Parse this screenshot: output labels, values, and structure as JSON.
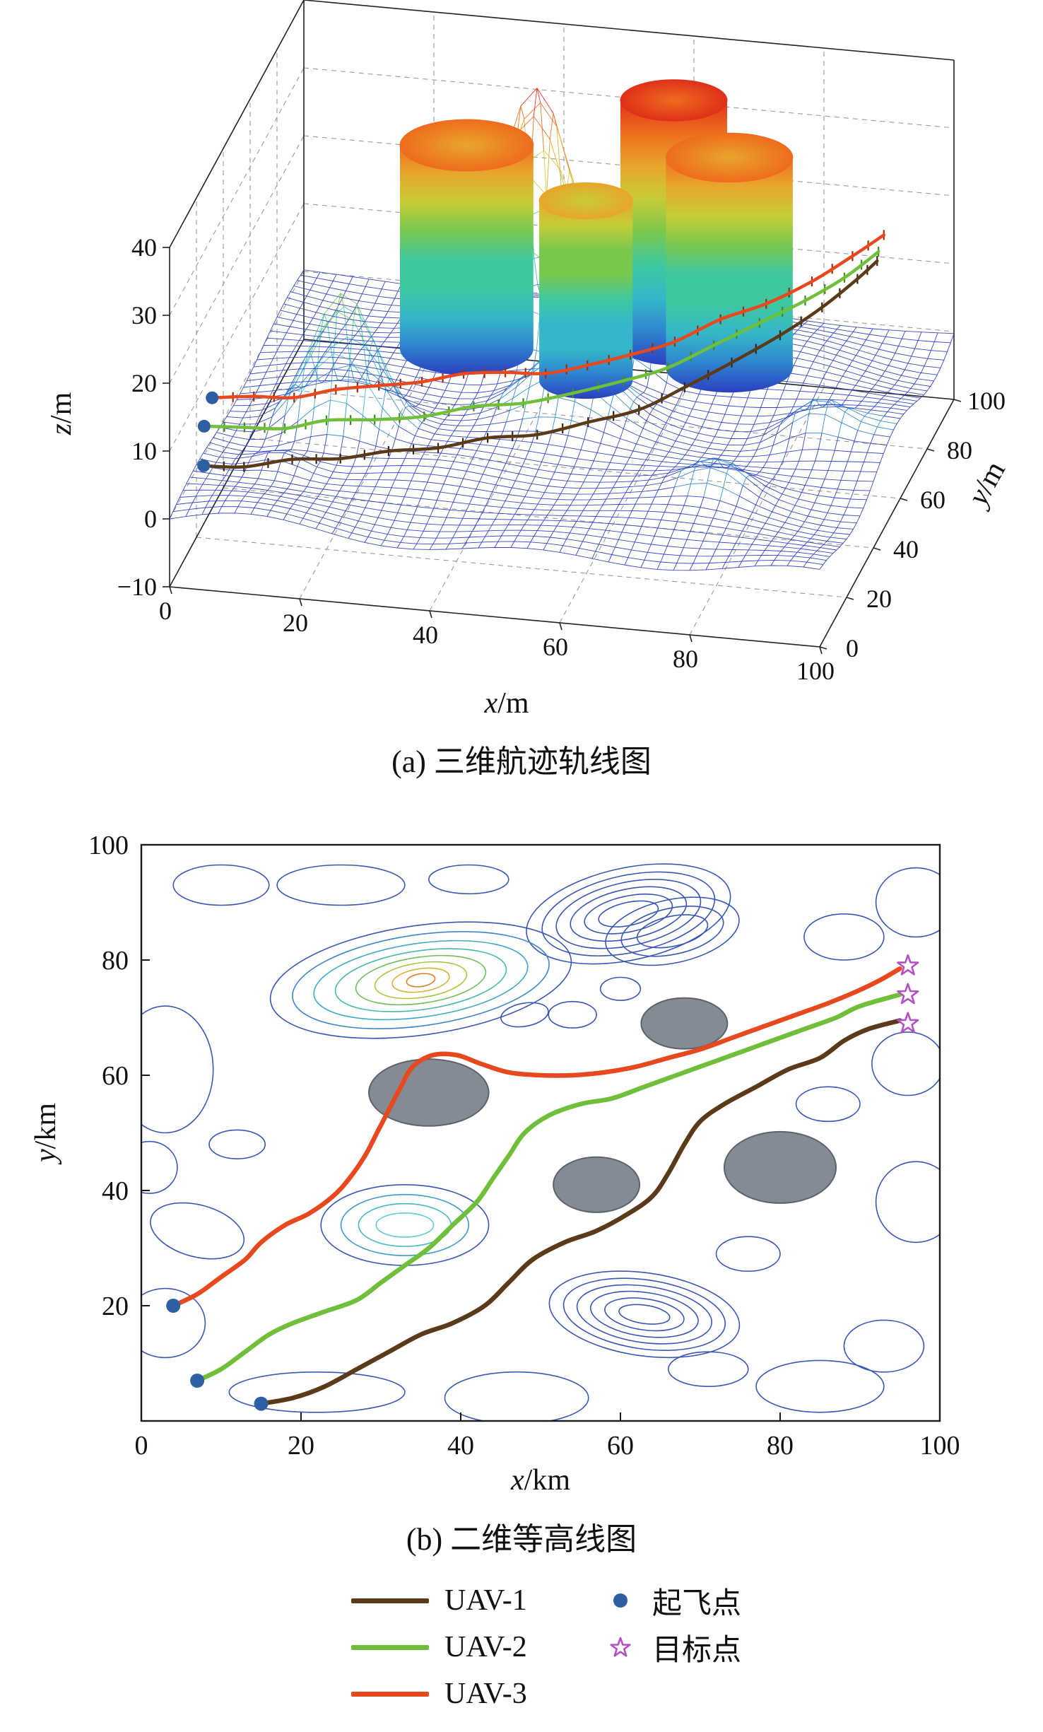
{
  "figure": {
    "caption_a": "(a) 三维航迹轨线图",
    "caption_b": "(b) 二维等高线图"
  },
  "chart_data": [
    {
      "type": "surface3d",
      "xlabel": "x/m",
      "ylabel": "y/m",
      "zlabel": "z/m",
      "xlim": [
        0,
        100
      ],
      "ylim": [
        0,
        100
      ],
      "zlim": [
        -10,
        40
      ],
      "xticks": [
        0,
        20,
        40,
        60,
        80,
        100
      ],
      "yticks": [
        0,
        20,
        40,
        60,
        80,
        100
      ],
      "zticks": [
        -10,
        0,
        10,
        20,
        30,
        40
      ],
      "terrain_bumps": [
        {
          "x": 40,
          "y": 80,
          "h": 38,
          "s": 6
        },
        {
          "x": 18,
          "y": 42,
          "h": 20,
          "s": 5
        },
        {
          "x": 57,
          "y": 74,
          "h": 22,
          "s": 3.5
        },
        {
          "x": 50,
          "y": 55,
          "h": 9,
          "s": 6
        },
        {
          "x": 78,
          "y": 30,
          "h": 4,
          "s": 4
        },
        {
          "x": 12,
          "y": 25,
          "h": 3,
          "s": 4
        },
        {
          "x": 88,
          "y": 55,
          "h": 5,
          "s": 4
        }
      ],
      "cylinders": [
        {
          "cx": 60,
          "cy": 85,
          "r": 8,
          "h": 36
        },
        {
          "cx": 30,
          "cy": 76,
          "r": 10,
          "h": 30
        },
        {
          "cx": 70,
          "cy": 78,
          "r": 9.5,
          "h": 31
        },
        {
          "cx": 50,
          "cy": 68,
          "r": 7,
          "h": 26.5
        }
      ],
      "series": [
        {
          "name": "UAV-1",
          "color": "#5a3a18",
          "tick_color": "#3a250e",
          "points": [
            [
              4,
              6,
              6
            ],
            [
              10,
              7,
              6
            ],
            [
              17,
              9,
              7
            ],
            [
              24,
              11,
              7
            ],
            [
              31,
              13,
              8
            ],
            [
              38,
              16,
              8
            ],
            [
              45,
              19,
              9
            ],
            [
              52,
              22,
              9
            ],
            [
              59,
              26,
              10
            ],
            [
              66,
              30,
              11
            ],
            [
              72,
              35,
              13
            ],
            [
              78,
              41,
              15
            ],
            [
              84,
              48,
              17
            ],
            [
              89,
              55,
              19
            ],
            [
              93,
              62,
              21
            ],
            [
              95,
              67,
              22
            ]
          ]
        },
        {
          "name": "UAV-2",
          "color": "#6fbf3a",
          "tick_color": "#3f8c1a",
          "points": [
            [
              2,
              16,
              8
            ],
            [
              8,
              17,
              8
            ],
            [
              14,
              18,
              8
            ],
            [
              20,
              20,
              9
            ],
            [
              27,
              22,
              9
            ],
            [
              34,
              25,
              9
            ],
            [
              41,
              28,
              10
            ],
            [
              48,
              31,
              10
            ],
            [
              55,
              34,
              11
            ],
            [
              62,
              38,
              12
            ],
            [
              68,
              42,
              13
            ],
            [
              74,
              47,
              15
            ],
            [
              80,
              52,
              17
            ],
            [
              86,
              57,
              19
            ],
            [
              91,
              62,
              21
            ],
            [
              95,
              68,
              23
            ]
          ]
        },
        {
          "name": "UAV-3",
          "color": "#e8481e",
          "tick_color": "#9c2c0c",
          "points": [
            [
              2,
              22,
              10
            ],
            [
              8,
              24,
              10
            ],
            [
              14,
              25,
              10
            ],
            [
              20,
              27,
              11
            ],
            [
              26,
              30,
              11
            ],
            [
              32,
              33,
              11
            ],
            [
              38,
              35,
              12
            ],
            [
              44,
              37,
              12
            ],
            [
              50,
              38,
              12
            ],
            [
              56,
              40,
              13
            ],
            [
              62,
              43,
              14
            ],
            [
              68,
              47,
              15
            ],
            [
              74,
              52,
              17
            ],
            [
              80,
              57,
              18
            ],
            [
              86,
              62,
              20
            ],
            [
              91,
              68,
              22
            ],
            [
              95,
              72,
              24
            ]
          ]
        }
      ],
      "start_points": [
        [
          4,
          6,
          6
        ],
        [
          2,
          16,
          8
        ],
        [
          2,
          22,
          10
        ]
      ],
      "start_color": "#2e5fa3"
    },
    {
      "type": "contour",
      "xlabel": "x/km",
      "ylabel": "y/km",
      "xlim": [
        0,
        100
      ],
      "ylim": [
        0,
        100
      ],
      "xticks": [
        0,
        20,
        40,
        60,
        80,
        100
      ],
      "yticks": [
        20,
        40,
        60,
        80,
        100
      ],
      "contour_color": "#3a57b5",
      "loops": [
        [
          3,
          61,
          6,
          11,
          0
        ],
        [
          12,
          48,
          3.5,
          2.5,
          0
        ],
        [
          7,
          33,
          6,
          4.5,
          15
        ],
        [
          3,
          17,
          5,
          6,
          0
        ],
        [
          22,
          5,
          11,
          3.5,
          0
        ],
        [
          47,
          4,
          9,
          4.5,
          0
        ],
        [
          85,
          6,
          8,
          4.5,
          0
        ],
        [
          93,
          13,
          5,
          4.5,
          0
        ],
        [
          97,
          38,
          5,
          7,
          0
        ],
        [
          96,
          62,
          4.5,
          5.5,
          0
        ],
        [
          97,
          90,
          5,
          6,
          0
        ],
        [
          88,
          84,
          5,
          4,
          0
        ],
        [
          54,
          70.5,
          3,
          2.3,
          0
        ],
        [
          48,
          70.5,
          3,
          2,
          -10
        ],
        [
          25,
          93,
          8,
          3.5,
          0
        ],
        [
          10,
          93,
          6,
          3.5,
          0
        ],
        [
          41,
          94,
          5,
          2.5,
          0
        ],
        [
          76,
          29,
          4,
          3,
          0
        ],
        [
          1,
          44,
          3.5,
          4.5,
          0
        ],
        [
          60,
          75,
          2.5,
          2,
          0
        ],
        [
          86,
          55,
          4,
          3,
          0
        ],
        [
          71,
          9,
          5,
          3,
          0
        ]
      ],
      "ring_clusters": [
        {
          "cx": 61,
          "cy": 88,
          "rot": -12,
          "color": "#3a57b5",
          "rings": [
            [
              13,
              8
            ],
            [
              11,
              6.7
            ],
            [
              9.2,
              5.5
            ],
            [
              7.4,
              4.3
            ],
            [
              5.6,
              3.1
            ],
            [
              3.8,
              2
            ]
          ]
        },
        {
          "cx": 66.5,
          "cy": 85,
          "rot": -12,
          "color": "#3a57b5",
          "rings": [
            [
              8.5,
              5.5
            ],
            [
              6.5,
              4
            ],
            [
              4.5,
              2.6
            ]
          ]
        },
        {
          "cx": 33,
          "cy": 34,
          "rot": 0,
          "colors": [
            "#3a57b5",
            "#3f9ac6",
            "#46b8c8",
            "#63c8d8"
          ],
          "rings": [
            [
              10.5,
              7
            ],
            [
              8,
              5.3
            ],
            [
              5.8,
              3.7
            ],
            [
              3.6,
              2.1
            ]
          ]
        },
        {
          "cx": 63,
          "cy": 18.5,
          "rot": 8,
          "color": "#3a57b5",
          "rings": [
            [
              12,
              7.2
            ],
            [
              10.2,
              6
            ],
            [
              8.5,
              4.9
            ],
            [
              6.8,
              3.8
            ],
            [
              5,
              2.7
            ],
            [
              3.2,
              1.6
            ]
          ]
        }
      ],
      "multi_cluster": {
        "cx": 35,
        "cy": 76.5,
        "rot": -8,
        "rings": [
          [
            19,
            9.5,
            "#3a57b5"
          ],
          [
            16.2,
            7.9,
            "#3e86c8"
          ],
          [
            13.5,
            6.4,
            "#3fa9c6"
          ],
          [
            10.8,
            5.1,
            "#47bba4"
          ],
          [
            8.2,
            4,
            "#6fbf59"
          ],
          [
            5.8,
            3,
            "#a9c53e"
          ],
          [
            3.6,
            2,
            "#d8b232"
          ],
          [
            1.8,
            1.1,
            "#df7f2a"
          ]
        ]
      },
      "obstacles": [
        {
          "cx": 36,
          "cy": 57,
          "rx": 7.5,
          "ry": 5.8
        },
        {
          "cx": 57,
          "cy": 41,
          "rx": 5.4,
          "ry": 4.8
        },
        {
          "cx": 68,
          "cy": 69,
          "rx": 5.4,
          "ry": 4.4
        },
        {
          "cx": 80,
          "cy": 44,
          "rx": 7,
          "ry": 6.2
        }
      ],
      "series": [
        {
          "name": "UAV-1",
          "color": "#5a3a18",
          "width": 6.5,
          "points": [
            [
              15,
              3
            ],
            [
              19,
              4
            ],
            [
              23,
              6
            ],
            [
              27,
              9
            ],
            [
              31,
              12
            ],
            [
              35,
              15
            ],
            [
              39,
              17
            ],
            [
              43,
              20
            ],
            [
              46,
              24
            ],
            [
              49,
              28
            ],
            [
              53,
              31
            ],
            [
              57,
              33
            ],
            [
              61,
              36
            ],
            [
              64,
              39
            ],
            [
              66,
              43
            ],
            [
              68,
              48
            ],
            [
              70,
              52
            ],
            [
              73,
              55
            ],
            [
              77,
              58
            ],
            [
              81,
              61
            ],
            [
              85,
              63
            ],
            [
              88,
              66
            ],
            [
              91,
              68
            ],
            [
              95,
              69.5
            ]
          ]
        },
        {
          "name": "UAV-2",
          "color": "#6fbf3a",
          "width": 6.5,
          "points": [
            [
              7,
              7
            ],
            [
              10,
              9
            ],
            [
              13,
              12
            ],
            [
              16,
              15
            ],
            [
              19,
              17
            ],
            [
              23,
              19
            ],
            [
              27,
              21
            ],
            [
              30,
              24
            ],
            [
              33,
              27
            ],
            [
              36,
              30
            ],
            [
              39,
              34
            ],
            [
              42,
              38
            ],
            [
              44,
              42
            ],
            [
              46,
              46
            ],
            [
              48,
              50
            ],
            [
              51,
              53
            ],
            [
              55,
              55
            ],
            [
              59,
              56
            ],
            [
              63,
              58
            ],
            [
              67,
              60
            ],
            [
              71,
              62
            ],
            [
              75,
              64
            ],
            [
              79,
              66
            ],
            [
              83,
              68
            ],
            [
              87,
              70
            ],
            [
              90,
              72
            ],
            [
              95,
              74
            ]
          ]
        },
        {
          "name": "UAV-3",
          "color": "#e8481e",
          "width": 6.5,
          "points": [
            [
              4,
              20
            ],
            [
              7,
              22
            ],
            [
              10,
              25
            ],
            [
              13,
              28
            ],
            [
              15,
              31
            ],
            [
              18,
              34
            ],
            [
              21,
              36
            ],
            [
              24,
              39
            ],
            [
              26,
              42
            ],
            [
              28,
              46
            ],
            [
              29.5,
              50
            ],
            [
              31,
              54
            ],
            [
              32.5,
              58
            ],
            [
              34,
              61.5
            ],
            [
              36.5,
              63.5
            ],
            [
              39.5,
              63.5
            ],
            [
              42.5,
              62
            ],
            [
              46,
              60.5
            ],
            [
              50,
              60
            ],
            [
              54,
              60
            ],
            [
              58,
              60.5
            ],
            [
              62,
              61.5
            ],
            [
              66,
              63
            ],
            [
              70,
              64.5
            ],
            [
              74,
              66.5
            ],
            [
              78,
              68.5
            ],
            [
              82,
              70.5
            ],
            [
              86,
              72.5
            ],
            [
              89.5,
              74.5
            ],
            [
              92.5,
              76.5
            ],
            [
              95,
              78.5
            ]
          ]
        }
      ],
      "start_points": [
        [
          15,
          3
        ],
        [
          7,
          7
        ],
        [
          4,
          20
        ]
      ],
      "start_color": "#2e5fa3",
      "targets": [
        [
          96,
          79
        ],
        [
          96,
          74
        ],
        [
          96,
          69
        ]
      ],
      "target_color": "#b44fc4"
    }
  ],
  "legend": {
    "items": [
      {
        "label": "UAV-1",
        "marker": "line",
        "color": "#5a3a18"
      },
      {
        "label": "UAV-2",
        "marker": "line",
        "color": "#6fbf3a"
      },
      {
        "label": "UAV-3",
        "marker": "line",
        "color": "#e8481e"
      },
      {
        "label": "起飞点",
        "marker": "dot",
        "color": "#2e5fa3"
      },
      {
        "label": "目标点",
        "marker": "star",
        "color": "#b44fc4"
      }
    ]
  }
}
